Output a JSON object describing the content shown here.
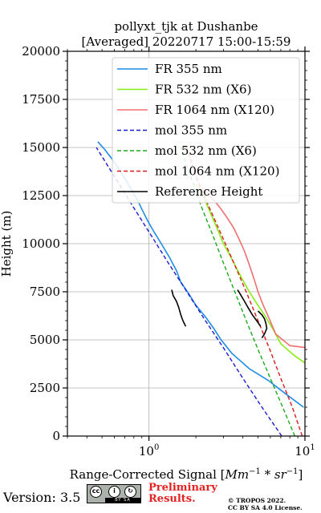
{
  "chart_data": {
    "type": "line",
    "title": [
      "pollyxt_tjk at Dushanbe",
      "[Averaged] 20220717 15:00-15:59"
    ],
    "xlabel": "Range-Corrected Signal [Mm⁻¹ * sr⁻¹]",
    "xlabel_parts": {
      "main": "Range-Corrected Signal [",
      "unit1": "Mm",
      "sup1": "−1",
      "star": " * ",
      "unit2": "sr",
      "sup2": "−1",
      "close": "]"
    },
    "ylabel": "Height (m)",
    "xscale": "log",
    "xlim": [
      0.3,
      10
    ],
    "ylim": [
      0,
      20000
    ],
    "xticks": [
      {
        "value": 1,
        "base": "10",
        "exp": "0"
      },
      {
        "value": 10,
        "base": "10",
        "exp": "1"
      }
    ],
    "yticks": [
      0,
      2500,
      5000,
      7500,
      10000,
      12500,
      15000,
      17500,
      20000
    ],
    "grid": true,
    "legend_position": "upper-right",
    "series": [
      {
        "name": "FR 355 nm",
        "color": "#1f8ce6",
        "style": "solid",
        "x": [
          9.8,
          7.5,
          5.8,
          4.4,
          3.4,
          2.9,
          2.6,
          2.3,
          2.0,
          1.8,
          1.6,
          1.5,
          1.35,
          1.2,
          1.08,
          0.98,
          0.9,
          0.84,
          0.76,
          0.7,
          0.64,
          0.58,
          0.52,
          0.47
        ],
        "y": [
          1500,
          2200,
          2900,
          3500,
          4300,
          5000,
          5600,
          6200,
          6800,
          7400,
          8000,
          8600,
          9300,
          10000,
          10600,
          11200,
          11800,
          12300,
          12900,
          13400,
          13900,
          14400,
          14900,
          15300
        ]
      },
      {
        "name": "FR 532 nm (X6)",
        "color": "#86ee14",
        "style": "solid",
        "x": [
          10,
          8.5,
          7.0,
          6.2,
          5.5,
          4.9,
          4.4,
          4.0,
          3.6,
          3.3,
          3.0,
          2.8,
          2.6,
          2.45,
          2.3,
          2.2,
          2.1,
          2.0
        ],
        "y": [
          3800,
          4200,
          4800,
          5600,
          6300,
          6900,
          7500,
          8100,
          8800,
          9400,
          10000,
          10600,
          11200,
          11700,
          12200,
          12600,
          12900,
          13100
        ]
      },
      {
        "name": "FR 1064 nm (X120)",
        "color": "#f26e6e",
        "style": "solid",
        "x": [
          10,
          8.0,
          6.5,
          5.9,
          5.4,
          5.0,
          4.7,
          4.4,
          4.1,
          3.8,
          3.5,
          3.2,
          2.9,
          2.65,
          2.4,
          2.2
        ],
        "y": [
          4600,
          4700,
          5300,
          6100,
          6800,
          7500,
          8200,
          8900,
          9600,
          10200,
          10800,
          11300,
          11800,
          12200,
          12600,
          12900
        ]
      },
      {
        "name": "mol 355 nm",
        "color": "#1a1ad6",
        "style": "dashed",
        "x": [
          7.1,
          5.3,
          4.0,
          3.05,
          2.3,
          1.75,
          1.33,
          1.02,
          0.78,
          0.6,
          0.46
        ],
        "y": [
          0,
          1500,
          3000,
          4500,
          6000,
          7500,
          9000,
          10500,
          12000,
          13500,
          15000
        ]
      },
      {
        "name": "mol 532 nm (X6)",
        "color": "#1aaa1a",
        "style": "dashed",
        "x": [
          8.6,
          7.2,
          6.0,
          5.0,
          4.2,
          3.55,
          3.0,
          2.55,
          2.15,
          1.85,
          1.6
        ],
        "y": [
          0,
          1500,
          3000,
          4500,
          6000,
          7500,
          9000,
          10500,
          12000,
          13500,
          15000
        ]
      },
      {
        "name": "mol 1064 nm (X120)",
        "color": "#dd1a1a",
        "style": "dashed",
        "x": [
          9.6,
          8.3,
          7.0,
          5.95,
          5.0,
          4.2,
          3.5,
          2.9,
          2.4,
          2.0,
          1.75
        ],
        "y": [
          0,
          1500,
          3000,
          4500,
          6000,
          7500,
          9000,
          10500,
          12000,
          13500,
          15000
        ]
      },
      {
        "name": "Reference Height",
        "color": "#000000",
        "style": "solid",
        "segments": [
          {
            "x": [
              1.4,
              1.43,
              1.5,
              1.55,
              1.6,
              1.65,
              1.72
            ],
            "y": [
              7600,
              7300,
              7000,
              6700,
              6300,
              6000,
              5700
            ]
          },
          {
            "x": [
              3.7,
              3.9,
              4.1,
              4.3,
              4.6,
              4.9,
              5.2
            ],
            "y": [
              7600,
              7300,
              7000,
              6700,
              6300,
              6000,
              5700
            ]
          },
          {
            "x": [
              5.0,
              5.3,
              5.5,
              5.6,
              5.7,
              5.5,
              5.3
            ],
            "y": [
              6500,
              6300,
              6100,
              5900,
              5600,
              5300,
              5100
            ]
          }
        ]
      }
    ]
  },
  "footer": {
    "version": "Version: 3.5",
    "license_badge": {
      "top": "© Ⓖ Ⓢ",
      "bottom": "BY SA"
    },
    "preliminary_line1": "Preliminary",
    "preliminary_line2": "Results.",
    "copyright_line1": "© TROPOS 2022.",
    "copyright_line2": "CC BY SA 4.0 License."
  }
}
